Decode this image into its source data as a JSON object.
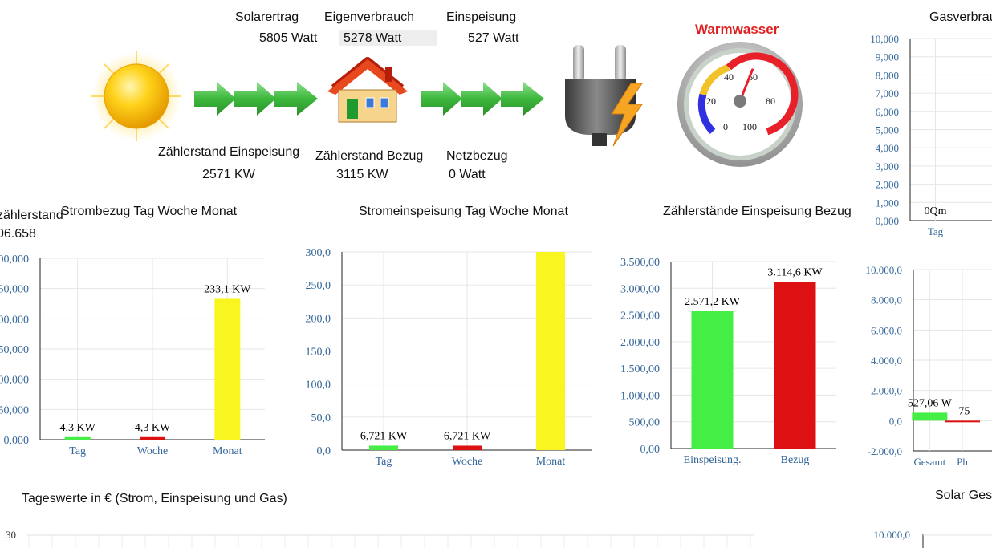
{
  "header": {
    "solarertrag_label": "Solarertrag",
    "solarertrag_value": "5805 Watt",
    "eigenverbrauch_label": "Eigenverbrauch",
    "eigenverbrauch_value": "5278 Watt",
    "einspeisung_label": "Einspeisung",
    "einspeisung_value": "527 Watt",
    "zaehler_einspeisung_label": "Zählerstand Einspeisung",
    "zaehler_einspeisung_value": "2571 KW",
    "zaehler_bezug_label": "Zählerstand Bezug",
    "zaehler_bezug_value": "3115 KW",
    "netzbezug_label": "Netzbezug",
    "netzbezug_value": "0 Watt",
    "warmwasser_label": "Warmwasser"
  },
  "gauge": {
    "ticks": [
      "0",
      "20",
      "40",
      "60",
      "80",
      "100"
    ],
    "value": 58
  },
  "left_cut": {
    "label": "zählerstand",
    "value": "06.658"
  },
  "colors": {
    "green": "#44ee44",
    "red": "#dd1111",
    "yellow": "#f8f520",
    "axis_text": "#336699",
    "arrow": "#44bb44"
  },
  "chart_data": [
    {
      "type": "bar",
      "title": "Strombezug Tag Woche Monat",
      "categories": [
        "Tag",
        "Woche",
        "Monat"
      ],
      "values": [
        4.3,
        4.3,
        233.1
      ],
      "data_labels": [
        "4,3 KW",
        "4,3  KW",
        "233,1 KW"
      ],
      "colors": [
        "#44ee44",
        "#dd1111",
        "#f8f520"
      ],
      "ylim": [
        0,
        300
      ],
      "ytick_labels": [
        "0,000",
        "50,000",
        "00,000",
        "50,000",
        "00,000",
        "50,000",
        "00,000"
      ]
    },
    {
      "type": "bar",
      "title": "Stromeinspeisung Tag Woche Monat",
      "categories": [
        "Tag",
        "Woche",
        "Monat"
      ],
      "values": [
        6.721,
        6.721,
        300
      ],
      "data_labels": [
        "6,721 KW",
        "6,721  KW",
        ""
      ],
      "colors": [
        "#44ee44",
        "#dd1111",
        "#f8f520"
      ],
      "ylim": [
        0,
        300
      ],
      "ytick_labels": [
        "0,0",
        "50,0",
        "100,0",
        "150,0",
        "200,0",
        "250,0",
        "300,0"
      ]
    },
    {
      "type": "bar",
      "title": "Zählerstände Einspeisung Bezug",
      "categories": [
        "Einspeisung.",
        "Bezug"
      ],
      "values": [
        2571.2,
        3114.6
      ],
      "data_labels": [
        "2.571,2 KW",
        "3.114,6  KW"
      ],
      "colors": [
        "#44ee44",
        "#dd1111"
      ],
      "ylim": [
        0,
        3500
      ],
      "ytick_labels": [
        "0,00",
        "500,00",
        "1.000,00",
        "1.500,00",
        "2.000,00",
        "2.500,00",
        "3.000,00",
        "3.500,00"
      ]
    },
    {
      "type": "bar",
      "title": "Gasverbrau",
      "categories": [
        "Tag"
      ],
      "values": [
        0
      ],
      "data_labels": [
        "0Qm"
      ],
      "colors": [
        "#dd1111"
      ],
      "ylim": [
        0,
        10000
      ],
      "ytick_labels": [
        "0,000",
        "1,000",
        "2,000",
        "3,000",
        "4,000",
        "5,000",
        "6,000",
        "7,000",
        "8,000",
        "9,000",
        "10,000"
      ]
    },
    {
      "type": "bar",
      "title": "",
      "categories": [
        "Gesamt",
        "Ph"
      ],
      "values": [
        527.06,
        -75
      ],
      "data_labels": [
        "527,06 W",
        "-75"
      ],
      "colors": [
        "#44ee44",
        "#dd1111"
      ],
      "ylim": [
        -2000,
        10000
      ],
      "ytick_labels": [
        "-2.000,0",
        "0,0",
        "2.000,0",
        "4.000,0",
        "6.000,0",
        "8.000,0",
        "10.000,0"
      ]
    },
    {
      "type": "line",
      "title": "Tageswerte in € (Strom, Einspeisung und Gas)",
      "ytick_labels": [
        "30"
      ]
    },
    {
      "type": "bar",
      "title": "Solar Ges",
      "ytick_labels": [
        "10.000,0"
      ]
    }
  ]
}
